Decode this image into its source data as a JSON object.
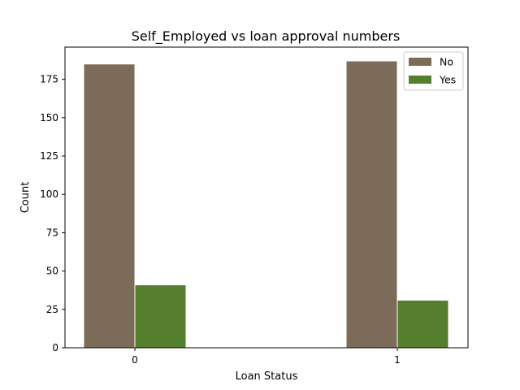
{
  "chart_data": {
    "type": "bar",
    "title": "Self_Employed vs loan approval numbers",
    "xlabel": "Loan Status",
    "ylabel": "Count",
    "categories": [
      "0",
      "1"
    ],
    "series": [
      {
        "name": "No",
        "values": [
          185,
          187
        ],
        "color": "#7d6b5a"
      },
      {
        "name": "Yes",
        "values": [
          41,
          31
        ],
        "color": "#557f2d"
      }
    ],
    "ylim": [
      0,
      196
    ],
    "yticks": [
      0,
      25,
      50,
      75,
      100,
      125,
      150,
      175
    ],
    "grid": false,
    "legend_position": "top-right"
  }
}
